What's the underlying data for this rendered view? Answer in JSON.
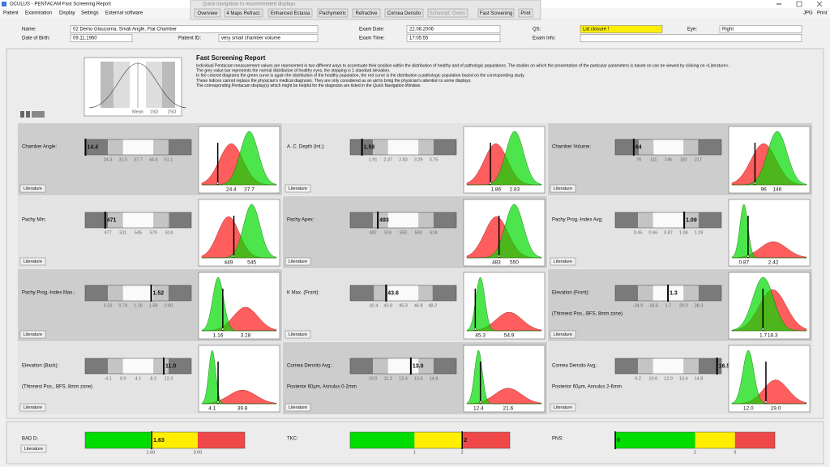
{
  "window": {
    "title": "OCULUS - PENTACAM  Fast Screening Report"
  },
  "menu": {
    "items": [
      "Patient",
      "Examination",
      "Display",
      "Settings",
      "External software"
    ],
    "right": [
      "JPG",
      "Print"
    ]
  },
  "quick_nav": {
    "title": "Quick navigation to recommended displays",
    "buttons": [
      "Overview",
      "4 Maps Refract.",
      "Enhanced Ectasia",
      "Pachymetric",
      "Refractive",
      "Cornea Densito",
      "Scheimpf. Overv.",
      "Fast Screening",
      "Print"
    ]
  },
  "patient": {
    "name": {
      "label": "Name:",
      "value": "02 Demo Glaucoma, Small Angle, Flat Chamber"
    },
    "birth": {
      "label": "Date of Birth:",
      "value": "09.11.1960"
    },
    "id": {
      "label": "Patient ID:",
      "value": "very small chamber volume"
    },
    "exam_date": {
      "label": "Exam Date:",
      "value": "22.08.2006"
    },
    "exam_time": {
      "label": "Exam Time:",
      "value": "17:05:55"
    },
    "qs": {
      "label": "QS:",
      "value": "Lid closure !"
    },
    "eye": {
      "label": "Eye:",
      "value": "Right"
    },
    "exam_info": {
      "label": "Exam Info:"
    }
  },
  "report": {
    "title": "Fast Screening Report",
    "legend": [
      "Mean",
      "1SD",
      "2SD"
    ],
    "text": [
      "Individual Pentacam measurement values are represented in two different ways to accentuate their position within the distribution of healthy and of pathologic populations. The studies on which the presentation of the particular parameters is based on can be viewed by clicking on <Literature>.",
      "The grey value bar represents the normal distribution of healthy eyes, the stepping is 1 standard deviation.",
      "In the colored diagrams the green curve is again the distribution of the healthy population, the red curve is the distribution a pathologic population based on the corresponding study.",
      "These indices cannot replace the physician's medical diagnosis. They are only considered as an aid to bring the physician's attention to some displays.",
      "The corresponding Pentacam display(s) which might be helpful for the diagnosis are listed in the Quick Navigation Window."
    ]
  },
  "panels": [
    {
      "label": "Chamber Angle:",
      "value": 14.4,
      "ticks": [
        24.3,
        {
          "value": 31,
          "label": "31.0"
        },
        37.7,
        44.4,
        51.1
      ],
      "pathologic": 24.4,
      "healthy": 37.7,
      "button": "Literature"
    },
    {
      "label": "A. C. Depth (Int.):",
      "value": 1.58,
      "ticks": [
        1.91,
        2.37,
        2.83,
        3.29,
        3.75
      ],
      "pathologic": 1.86,
      "healthy": 2.83,
      "button": "Literature"
    },
    {
      "label": "Chamber Volume:",
      "value": 64,
      "ticks": [
        76,
        111,
        146,
        182,
        217
      ],
      "pathologic": 96,
      "healthy": 146,
      "button": "Literature"
    },
    {
      "label": "Pachy Min:",
      "value": 471,
      "ticks": [
        477,
        511,
        545,
        579,
        614
      ],
      "pathologic": 449,
      "healthy": 545,
      "button": "Literature"
    },
    {
      "label": "Pachy Apex:",
      "value": 493,
      "ticks": [
        482,
        516,
        550,
        584,
        618
      ],
      "pathologic": 483,
      "healthy": 550,
      "button": "Literature"
    },
    {
      "label": "Pachy Prog.-Index Avg:",
      "value": 1.09,
      "ticks": [
        0.45,
        0.66,
        0.87,
        1.08,
        1.29
      ],
      "healthy": 0.87,
      "pathologic": 2.42,
      "button": "Literature"
    },
    {
      "label": "Pachy Prog.-Index Max.:",
      "value": 1.52,
      "ticks": [
        0.32,
        0.74,
        1.16,
        1.58,
        {
          "value": 2,
          "label": "2.00"
        }
      ],
      "healthy": 1.16,
      "pathologic": 3.28,
      "button": "Literature"
    },
    {
      "label": "K Max. (Front):",
      "value": 43.6,
      "ticks": [
        42.4,
        43.8,
        45.3,
        46.8,
        48.2
      ],
      "healthy": 45.3,
      "pathologic": 54.9,
      "button": "Literature"
    },
    {
      "label": "Elevation (Front):",
      "sublabel": "(Thinnest Pos., BFS, 8mm zone)",
      "value": 1.3,
      "ticks": [
        -34.9,
        -16.6,
        1.7,
        {
          "value": 20,
          "label": "20.0"
        },
        38.3
      ],
      "healthy": 1.7,
      "pathologic": 18.3,
      "button": "Literature"
    },
    {
      "label": "Elevation (Back):",
      "sublabel": "(Thinnest Pos., BFS, 8mm zone)",
      "value": 11,
      "value_label": "11.0",
      "ticks": [
        -4.1,
        {
          "value": 0,
          "label": "0.0"
        },
        4.1,
        8.2,
        12.3
      ],
      "healthy": 4.1,
      "pathologic": 39.8,
      "button": "Literature"
    },
    {
      "label": "Cornea Densito Avg.:",
      "sublabel": "Posterior 60µm, Annulus 0-2mm",
      "value": 13,
      "value_label": "13.0",
      "ticks": [
        {
          "value": 10,
          "label": "10.0"
        },
        11.2,
        12.4,
        13.6,
        14.8
      ],
      "healthy": 12.4,
      "pathologic": 21.6,
      "button": "Literature"
    },
    {
      "label": "Cornea Densito Avg.:",
      "sublabel": "Posterior 60µm, Annulus 2-6mm",
      "value": 16.5,
      "ticks": [
        9.2,
        10.6,
        {
          "value": 12,
          "label": "12.0"
        },
        13.4,
        14.8
      ],
      "healthy": {
        "value": 12,
        "label": "12.0"
      },
      "pathologic": {
        "value": 19,
        "label": "19.0"
      },
      "button": "Literature"
    }
  ],
  "indices": [
    {
      "label": "BAD D:",
      "value": 1.63,
      "ticks": [
        {
          "value": 1.6,
          "label": "1.60"
        },
        {
          "value": 3,
          "label": "3.00"
        }
      ],
      "xlim": [
        -0.35,
        4.4
      ],
      "colors": [
        "#00dd00",
        "#ffee00",
        "#f04848"
      ],
      "button": "Literature"
    },
    {
      "label": "TKC:",
      "value": 2,
      "ticks": [
        1,
        2
      ],
      "xlim": [
        -0.35,
        3
      ],
      "colors": [
        "#00dd00",
        "#ffee00",
        "#f04848"
      ]
    },
    {
      "label": "PNS:",
      "value": 0,
      "ticks": [
        2,
        3
      ],
      "xlim": [
        0,
        4
      ],
      "colors": [
        "#00dd00",
        "#ffee00",
        "#f04848"
      ]
    }
  ]
}
